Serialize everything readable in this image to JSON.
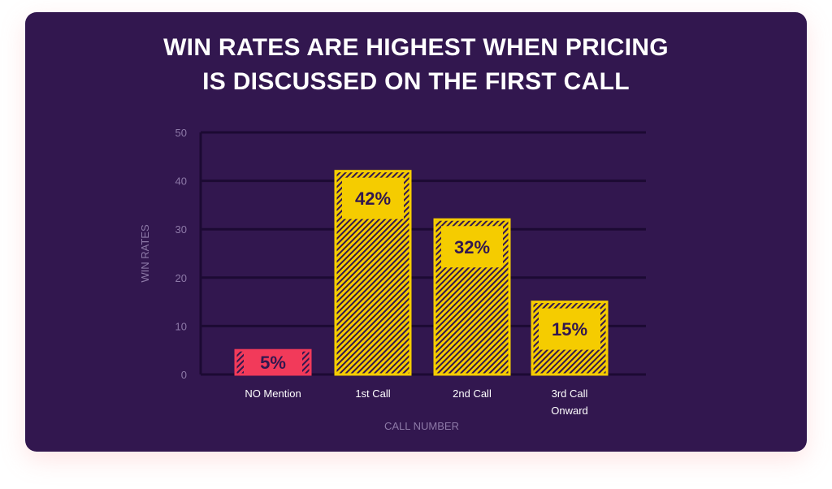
{
  "chart_data": {
    "type": "bar",
    "title_lines": [
      "WIN RATES ARE HIGHEST WHEN PRICING",
      "IS DISCUSSED ON THE FIRST CALL"
    ],
    "categories": [
      [
        "NO Mention"
      ],
      [
        "1st Call"
      ],
      [
        "2nd Call"
      ],
      [
        "3rd Call",
        "Onward"
      ]
    ],
    "values": [
      5,
      42,
      32,
      15
    ],
    "value_labels": [
      "5%",
      "42%",
      "32%",
      "15%"
    ],
    "bar_colors": [
      "#f23a5a",
      "#f5cc00",
      "#f5cc00",
      "#f5cc00"
    ],
    "xlabel": "CALL NUMBER",
    "ylabel": "WIN RATES",
    "ylim": [
      0,
      50
    ],
    "yticks": [
      0,
      10,
      20,
      30,
      40,
      50
    ],
    "grid": true,
    "colors": {
      "background": "#32174f",
      "grid": "#1c0a33",
      "hatch": "#32174f"
    }
  }
}
